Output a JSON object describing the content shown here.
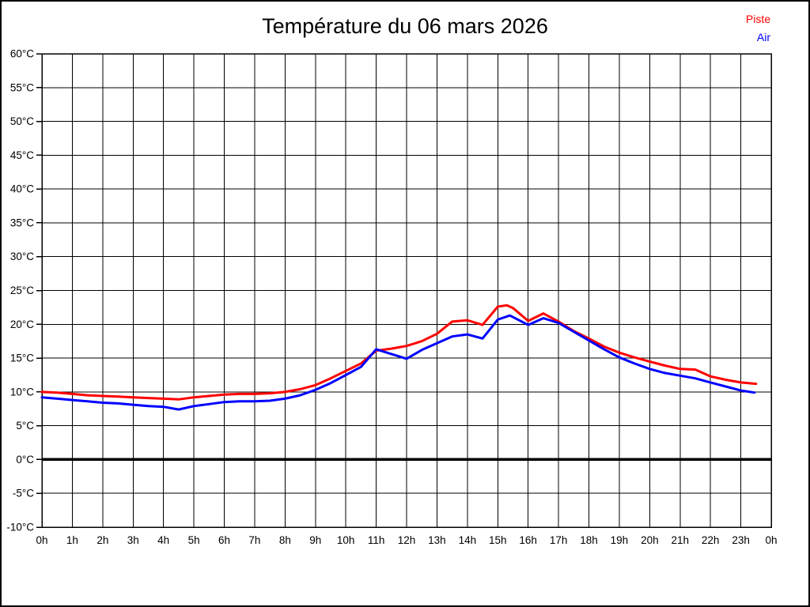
{
  "page": {
    "background": "#ffffff",
    "border_color": "#000000"
  },
  "chart_data": {
    "type": "line",
    "title": "Température du 06 mars 2026",
    "xlabel": "",
    "ylabel": "",
    "xlim": [
      0,
      24
    ],
    "ylim": [
      -10,
      60
    ],
    "grid": true,
    "grid_color": "#000000",
    "frame_color": "#000000",
    "zero_line": {
      "value": 0,
      "color": "#000000",
      "width": 3.5
    },
    "x_ticks": [
      {
        "value": 0,
        "label": "0h"
      },
      {
        "value": 1,
        "label": "1h"
      },
      {
        "value": 2,
        "label": "2h"
      },
      {
        "value": 3,
        "label": "3h"
      },
      {
        "value": 4,
        "label": "4h"
      },
      {
        "value": 5,
        "label": "5h"
      },
      {
        "value": 6,
        "label": "6h"
      },
      {
        "value": 7,
        "label": "7h"
      },
      {
        "value": 8,
        "label": "8h"
      },
      {
        "value": 9,
        "label": "9h"
      },
      {
        "value": 10,
        "label": "10h"
      },
      {
        "value": 11,
        "label": "11h"
      },
      {
        "value": 12,
        "label": "12h"
      },
      {
        "value": 13,
        "label": "13h"
      },
      {
        "value": 14,
        "label": "14h"
      },
      {
        "value": 15,
        "label": "15h"
      },
      {
        "value": 16,
        "label": "16h"
      },
      {
        "value": 17,
        "label": "17h"
      },
      {
        "value": 18,
        "label": "18h"
      },
      {
        "value": 19,
        "label": "19h"
      },
      {
        "value": 20,
        "label": "20h"
      },
      {
        "value": 21,
        "label": "21h"
      },
      {
        "value": 22,
        "label": "22h"
      },
      {
        "value": 23,
        "label": "23h"
      },
      {
        "value": 24,
        "label": "0h"
      }
    ],
    "y_ticks": [
      {
        "value": 60,
        "label": "60°C"
      },
      {
        "value": 55,
        "label": "55°C"
      },
      {
        "value": 50,
        "label": "50°C"
      },
      {
        "value": 45,
        "label": "45°C"
      },
      {
        "value": 40,
        "label": "40°C"
      },
      {
        "value": 35,
        "label": "35°C"
      },
      {
        "value": 30,
        "label": "30°C"
      },
      {
        "value": 25,
        "label": "25°C"
      },
      {
        "value": 20,
        "label": "20°C"
      },
      {
        "value": 15,
        "label": "15°C"
      },
      {
        "value": 10,
        "label": "10°C"
      },
      {
        "value": 5,
        "label": "5°C"
      },
      {
        "value": 0,
        "label": "0°C"
      },
      {
        "value": -5,
        "label": "-5°C"
      },
      {
        "value": -10,
        "label": "-10°C"
      }
    ],
    "legend": {
      "position": "top-right",
      "entries": [
        {
          "label": "Piste",
          "color": "#ff0000"
        },
        {
          "label": "Air",
          "color": "#0000ff"
        }
      ]
    },
    "series": [
      {
        "name": "Piste",
        "color": "#ff0000",
        "width": 3,
        "points": [
          [
            0,
            10.0
          ],
          [
            0.5,
            9.9
          ],
          [
            1,
            9.7
          ],
          [
            1.5,
            9.5
          ],
          [
            2,
            9.4
          ],
          [
            2.5,
            9.3
          ],
          [
            3,
            9.2
          ],
          [
            3.5,
            9.1
          ],
          [
            4,
            9.0
          ],
          [
            4.5,
            8.9
          ],
          [
            5,
            9.2
          ],
          [
            5.5,
            9.4
          ],
          [
            6,
            9.6
          ],
          [
            6.5,
            9.7
          ],
          [
            7,
            9.7
          ],
          [
            7.5,
            9.8
          ],
          [
            8,
            10.0
          ],
          [
            8.5,
            10.4
          ],
          [
            9,
            11.0
          ],
          [
            9.5,
            12.0
          ],
          [
            10,
            13.1
          ],
          [
            10.5,
            14.2
          ],
          [
            11,
            16.1
          ],
          [
            11.5,
            16.4
          ],
          [
            12,
            16.8
          ],
          [
            12.5,
            17.5
          ],
          [
            13,
            18.6
          ],
          [
            13.5,
            20.4
          ],
          [
            14,
            20.6
          ],
          [
            14.5,
            19.9
          ],
          [
            15,
            22.6
          ],
          [
            15.3,
            22.8
          ],
          [
            15.5,
            22.4
          ],
          [
            16,
            20.5
          ],
          [
            16.5,
            21.6
          ],
          [
            17,
            20.4
          ],
          [
            17.5,
            19.0
          ],
          [
            18,
            17.9
          ],
          [
            18.5,
            16.7
          ],
          [
            19,
            15.8
          ],
          [
            19.5,
            15.1
          ],
          [
            20,
            14.5
          ],
          [
            20.5,
            13.9
          ],
          [
            21,
            13.4
          ],
          [
            21.5,
            13.3
          ],
          [
            22,
            12.3
          ],
          [
            22.5,
            11.8
          ],
          [
            23,
            11.4
          ],
          [
            23.5,
            11.2
          ]
        ]
      },
      {
        "name": "Air",
        "color": "#0000ff",
        "width": 3,
        "points": [
          [
            0,
            9.2
          ],
          [
            0.5,
            9.0
          ],
          [
            1,
            8.8
          ],
          [
            1.5,
            8.6
          ],
          [
            2,
            8.4
          ],
          [
            2.5,
            8.3
          ],
          [
            3,
            8.1
          ],
          [
            3.5,
            7.9
          ],
          [
            4,
            7.8
          ],
          [
            4.5,
            7.4
          ],
          [
            5,
            7.9
          ],
          [
            5.5,
            8.2
          ],
          [
            6,
            8.5
          ],
          [
            6.5,
            8.6
          ],
          [
            7,
            8.6
          ],
          [
            7.5,
            8.7
          ],
          [
            8,
            9.0
          ],
          [
            8.5,
            9.5
          ],
          [
            9,
            10.3
          ],
          [
            9.5,
            11.3
          ],
          [
            10,
            12.5
          ],
          [
            10.5,
            13.7
          ],
          [
            11,
            16.3
          ],
          [
            11.5,
            15.6
          ],
          [
            12,
            14.9
          ],
          [
            12.5,
            16.2
          ],
          [
            13,
            17.2
          ],
          [
            13.5,
            18.2
          ],
          [
            14,
            18.5
          ],
          [
            14.5,
            17.9
          ],
          [
            15,
            20.7
          ],
          [
            15.4,
            21.3
          ],
          [
            16,
            19.9
          ],
          [
            16.5,
            20.9
          ],
          [
            17,
            20.2
          ],
          [
            17.5,
            18.9
          ],
          [
            18,
            17.6
          ],
          [
            18.5,
            16.3
          ],
          [
            19,
            15.1
          ],
          [
            19.5,
            14.2
          ],
          [
            20,
            13.4
          ],
          [
            20.5,
            12.8
          ],
          [
            21,
            12.4
          ],
          [
            21.5,
            12.0
          ],
          [
            22,
            11.4
          ],
          [
            22.5,
            10.8
          ],
          [
            23,
            10.2
          ],
          [
            23.45,
            9.9
          ]
        ]
      }
    ]
  }
}
